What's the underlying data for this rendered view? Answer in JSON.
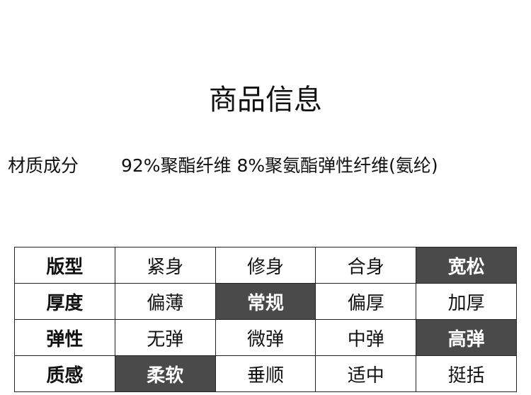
{
  "title": "商品信息",
  "material": {
    "label": "材质成分",
    "value": "92%聚酯纤维 8%聚氨酯弹性纤维(氨纶)"
  },
  "highlight_color": "#4a4a4a",
  "attributes": [
    {
      "name": "版型",
      "options": [
        "紧身",
        "修身",
        "合身",
        "宽松"
      ],
      "selected": "宽松"
    },
    {
      "name": "厚度",
      "options": [
        "偏薄",
        "常规",
        "偏厚",
        "加厚"
      ],
      "selected": "常规"
    },
    {
      "name": "弹性",
      "options": [
        "无弹",
        "微弹",
        "中弹",
        "高弹"
      ],
      "selected": "高弹"
    },
    {
      "name": "质感",
      "options": [
        "柔软",
        "垂顺",
        "适中",
        "挺括"
      ],
      "selected": "柔软"
    }
  ]
}
